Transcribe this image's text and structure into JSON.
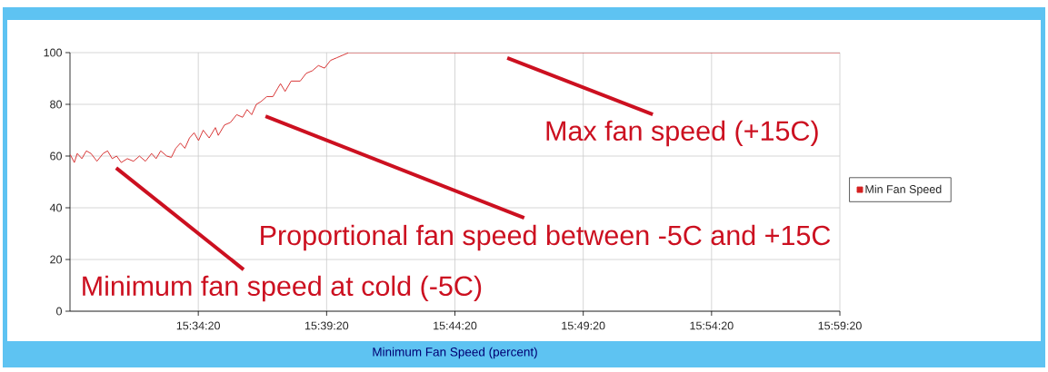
{
  "chart_data": {
    "type": "line",
    "xlabel": "Minimum Fan Speed (percent)",
    "xlim": [
      15.48889,
      15.98889
    ],
    "xticks": [
      {
        "value": 15.57222,
        "label": "15:34:20"
      },
      {
        "value": 15.65556,
        "label": "15:39:20"
      },
      {
        "value": 15.73889,
        "label": "15:44:20"
      },
      {
        "value": 15.82222,
        "label": "15:49:20"
      },
      {
        "value": 15.90556,
        "label": "15:54:20"
      },
      {
        "value": 15.98889,
        "label": "15:59:20"
      }
    ],
    "ylim": [
      0,
      100
    ],
    "yticks": [
      0,
      20,
      40,
      60,
      80,
      100
    ],
    "grid": true,
    "legend": "right",
    "marker": "none",
    "line_style": "solid",
    "series": [
      {
        "name": "Min Fan Speed",
        "color": "#d42020",
        "x": [
          15.4891,
          15.4917,
          15.4936,
          15.4966,
          15.4995,
          15.5025,
          15.5064,
          15.5104,
          15.5133,
          15.5163,
          15.5192,
          15.5222,
          15.5261,
          15.5301,
          15.534,
          15.5379,
          15.5419,
          15.5448,
          15.5478,
          15.5517,
          15.5547,
          15.5576,
          15.5606,
          15.5635,
          15.5665,
          15.5695,
          15.5724,
          15.5754,
          15.5793,
          15.5833,
          15.5852,
          15.5892,
          15.5931,
          15.5971,
          15.601,
          15.6039,
          15.6069,
          15.6099,
          15.6128,
          15.6167,
          15.6207,
          15.6236,
          15.6256,
          15.6286,
          15.6325,
          15.6384,
          15.6423,
          15.6463,
          15.6502,
          15.6542,
          15.6581,
          15.6621,
          15.666,
          15.6699,
          15.98889
        ],
        "values": [
          60.5,
          57.5,
          61,
          59,
          62,
          61,
          58,
          61,
          62,
          59,
          60,
          57.5,
          59,
          58,
          60,
          58,
          61,
          59,
          62,
          60,
          59.5,
          63,
          65,
          63,
          67,
          69,
          66,
          70,
          67,
          71,
          68,
          72,
          73,
          76,
          75,
          78,
          76,
          80,
          81,
          83,
          83,
          86,
          88,
          85,
          89,
          89,
          92,
          93,
          95,
          94,
          97,
          98,
          99,
          100,
          100
        ]
      }
    ],
    "annotations": [
      "Minimum fan speed at cold (-5C)",
      "Proportional fan speed between -5C and +15C",
      "Max fan speed (+15C)"
    ]
  }
}
